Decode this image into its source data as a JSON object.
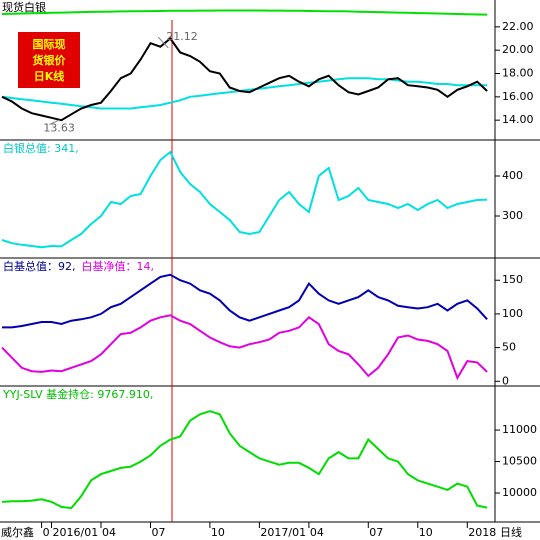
{
  "chart_data": [
    {
      "type": "line",
      "title": "现货白银",
      "badge": [
        "国际现",
        "货银价",
        "日K线"
      ],
      "annotations": [
        {
          "text": "21.12",
          "value": 21.12,
          "index": 17
        },
        {
          "text": "13.63",
          "value": 13.63,
          "index": 6
        }
      ],
      "ylim": [
        12.3,
        24.3
      ],
      "yticks": [
        {
          "value": 14,
          "label": "14.00"
        },
        {
          "value": 16,
          "label": "16.00"
        },
        {
          "value": 18,
          "label": "18.00"
        },
        {
          "value": 20,
          "label": "20.00"
        },
        {
          "value": 22,
          "label": "22.00"
        }
      ],
      "series": [
        {
          "color": "#00e000",
          "values": [
            23.1,
            23.12,
            23.14,
            23.16,
            23.18,
            23.2,
            23.22,
            23.24,
            23.26,
            23.28,
            23.3,
            23.31,
            23.32,
            23.33,
            23.34,
            23.35,
            23.36,
            23.37,
            23.38,
            23.38,
            23.39,
            23.39,
            23.4,
            23.4,
            23.4,
            23.4,
            23.4,
            23.39,
            23.39,
            23.38,
            23.37,
            23.36,
            23.35,
            23.34,
            23.33,
            23.32,
            23.3,
            23.28,
            23.26,
            23.24,
            23.22,
            23.2,
            23.18,
            23.16,
            23.14,
            23.12,
            23.1,
            23.08,
            23.06,
            23.05
          ]
        },
        {
          "color": "#00e0e0",
          "values": [
            16.0,
            15.9,
            15.8,
            15.7,
            15.6,
            15.5,
            15.4,
            15.3,
            15.2,
            15.1,
            15.0,
            15.0,
            15.0,
            15.0,
            15.1,
            15.2,
            15.3,
            15.5,
            15.7,
            16.0,
            16.1,
            16.2,
            16.3,
            16.4,
            16.5,
            16.6,
            16.7,
            16.8,
            16.9,
            17.0,
            17.1,
            17.2,
            17.3,
            17.4,
            17.5,
            17.6,
            17.6,
            17.6,
            17.5,
            17.5,
            17.4,
            17.3,
            17.3,
            17.2,
            17.1,
            17.1,
            17.0,
            17.0,
            17.0,
            17.0
          ]
        },
        {
          "color": "#000000",
          "values": [
            16.0,
            15.6,
            15.0,
            14.6,
            14.4,
            14.2,
            14.0,
            14.5,
            15.0,
            15.3,
            15.5,
            16.5,
            17.6,
            18.0,
            19.2,
            20.6,
            20.3,
            21.0,
            19.8,
            19.5,
            19.0,
            18.2,
            18.0,
            16.8,
            16.5,
            16.4,
            16.8,
            17.2,
            17.6,
            17.8,
            17.3,
            16.9,
            17.5,
            17.8,
            17.0,
            16.4,
            16.2,
            16.5,
            16.8,
            17.5,
            17.6,
            17.0,
            16.9,
            16.8,
            16.6,
            16.0,
            16.6,
            16.9,
            17.3,
            16.5
          ]
        }
      ]
    },
    {
      "type": "line",
      "header": [
        {
          "text": "白银总值: 341,",
          "color": "#00c8c8"
        }
      ],
      "ylim": [
        195,
        490
      ],
      "yticks": [
        300,
        400
      ],
      "series": [
        {
          "color": "#00e0e0",
          "values": [
            240,
            232,
            228,
            225,
            222,
            225,
            224,
            240,
            255,
            280,
            300,
            335,
            330,
            350,
            355,
            400,
            440,
            460,
            410,
            380,
            360,
            330,
            310,
            290,
            260,
            255,
            260,
            300,
            340,
            360,
            330,
            310,
            400,
            420,
            340,
            350,
            370,
            340,
            335,
            330,
            320,
            330,
            315,
            330,
            340,
            320,
            330,
            335,
            340,
            341
          ]
        }
      ]
    },
    {
      "type": "line",
      "header": [
        {
          "text": "白基总值：92,",
          "color": "#000090"
        },
        {
          "text": "白基净值：14,",
          "color": "#e000e0"
        }
      ],
      "ylim": [
        -7,
        183
      ],
      "yticks": [
        0,
        50,
        100,
        150
      ],
      "series": [
        {
          "color": "#0000b0",
          "values": [
            80,
            80,
            82,
            85,
            88,
            88,
            85,
            90,
            92,
            95,
            100,
            110,
            115,
            125,
            135,
            145,
            155,
            158,
            150,
            145,
            135,
            130,
            120,
            105,
            95,
            90,
            95,
            100,
            105,
            110,
            120,
            145,
            130,
            120,
            115,
            120,
            125,
            135,
            125,
            120,
            112,
            110,
            108,
            110,
            115,
            105,
            115,
            120,
            108,
            92
          ]
        },
        {
          "color": "#e000e0",
          "values": [
            50,
            35,
            20,
            15,
            14,
            16,
            15,
            20,
            25,
            30,
            40,
            55,
            70,
            72,
            80,
            90,
            95,
            98,
            90,
            85,
            75,
            65,
            58,
            52,
            50,
            55,
            58,
            62,
            72,
            75,
            80,
            95,
            85,
            55,
            45,
            40,
            25,
            8,
            20,
            40,
            65,
            68,
            62,
            60,
            55,
            45,
            5,
            30,
            28,
            14
          ]
        }
      ]
    },
    {
      "type": "line",
      "header": [
        {
          "text": "YYJ-SLV 基金持仓: 9767.910,",
          "color": "#00c000"
        }
      ],
      "ylim": [
        9540,
        11700
      ],
      "yticks": [
        10000,
        10500,
        11000
      ],
      "series": [
        {
          "color": "#00dd00",
          "values": [
            9860,
            9870,
            9870,
            9880,
            9900,
            9860,
            9780,
            9760,
            9950,
            10200,
            10300,
            10350,
            10400,
            10420,
            10500,
            10600,
            10750,
            10850,
            10900,
            11150,
            11250,
            11300,
            11250,
            10950,
            10750,
            10650,
            10550,
            10500,
            10450,
            10480,
            10480,
            10400,
            10300,
            10550,
            10650,
            10550,
            10550,
            10850,
            10700,
            10550,
            10500,
            10300,
            10200,
            10150,
            10100,
            10050,
            10150,
            10100,
            9800,
            9768
          ]
        }
      ],
      "footer_left": "威尔鑫",
      "footer_right": "日线",
      "categories": [
        null,
        null,
        null,
        null,
        "0",
        "2016/01",
        null,
        null,
        null,
        null,
        "04",
        null,
        null,
        null,
        null,
        "07",
        null,
        null,
        null,
        null,
        null,
        "10",
        null,
        null,
        null,
        null,
        "2017/01",
        null,
        null,
        null,
        null,
        "04",
        null,
        null,
        null,
        null,
        null,
        "07",
        null,
        null,
        null,
        null,
        "10",
        null,
        null,
        null,
        null,
        "2018",
        null,
        null
      ]
    }
  ]
}
